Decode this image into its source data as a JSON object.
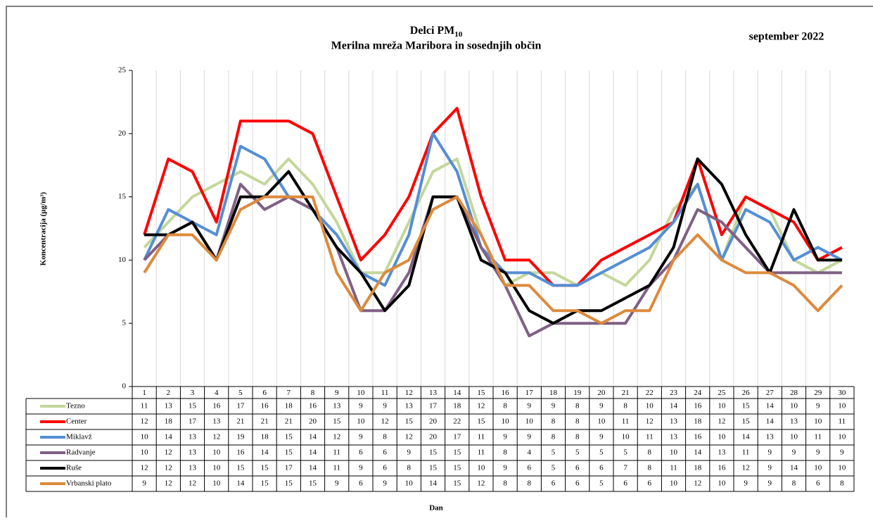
{
  "chart_data": {
    "type": "line",
    "title": "Delci PM",
    "title_subscript": "10",
    "subtitle": "Merilna mreža Maribora in sosednjih občin",
    "period": "september 2022",
    "y_label": "Koncentracija (µg/m³)",
    "x_label": "Dan",
    "categories": [
      "1",
      "2",
      "3",
      "4",
      "5",
      "6",
      "7",
      "8",
      "9",
      "10",
      "11",
      "12",
      "13",
      "14",
      "15",
      "16",
      "17",
      "18",
      "19",
      "20",
      "21",
      "22",
      "23",
      "24",
      "25",
      "26",
      "27",
      "28",
      "29",
      "30"
    ],
    "ylim": [
      0,
      25
    ],
    "yticks": [
      0,
      5,
      10,
      15,
      20,
      25
    ],
    "series": [
      {
        "name": "Tezno",
        "color": "#c4d79b",
        "values": [
          11,
          13,
          15,
          16,
          17,
          16,
          18,
          16,
          13,
          9,
          9,
          13,
          17,
          18,
          12,
          8,
          9,
          9,
          8,
          9,
          8,
          10,
          14,
          16,
          10,
          15,
          14,
          10,
          9,
          10
        ]
      },
      {
        "name": "Center",
        "color": "#ff0000",
        "values": [
          12,
          18,
          17,
          13,
          21,
          21,
          21,
          20,
          15,
          10,
          12,
          15,
          20,
          22,
          15,
          10,
          10,
          8,
          8,
          10,
          11,
          12,
          13,
          18,
          12,
          15,
          14,
          13,
          10,
          11
        ]
      },
      {
        "name": "Miklavž",
        "color": "#558ed5",
        "values": [
          10,
          14,
          13,
          12,
          19,
          18,
          15,
          14,
          12,
          9,
          8,
          12,
          20,
          17,
          11,
          9,
          9,
          8,
          8,
          9,
          10,
          11,
          13,
          16,
          10,
          14,
          13,
          10,
          11,
          10
        ]
      },
      {
        "name": "Radvanje",
        "color": "#7f6084",
        "values": [
          10,
          12,
          13,
          10,
          16,
          14,
          15,
          14,
          11,
          6,
          6,
          9,
          15,
          15,
          11,
          8,
          4,
          5,
          5,
          5,
          5,
          8,
          10,
          14,
          13,
          11,
          9,
          9,
          9,
          9
        ]
      },
      {
        "name": "Ruše",
        "color": "#000000",
        "values": [
          12,
          12,
          13,
          10,
          15,
          15,
          17,
          14,
          11,
          9,
          6,
          8,
          15,
          15,
          10,
          9,
          6,
          5,
          6,
          6,
          7,
          8,
          11,
          18,
          16,
          12,
          9,
          14,
          10,
          10
        ]
      },
      {
        "name": "Vrbanski plato",
        "color": "#dd8a3c",
        "values": [
          9,
          12,
          12,
          10,
          14,
          15,
          15,
          15,
          9,
          6,
          9,
          10,
          14,
          15,
          12,
          8,
          8,
          6,
          6,
          5,
          6,
          6,
          10,
          12,
          10,
          9,
          9,
          8,
          6,
          8
        ]
      }
    ]
  }
}
